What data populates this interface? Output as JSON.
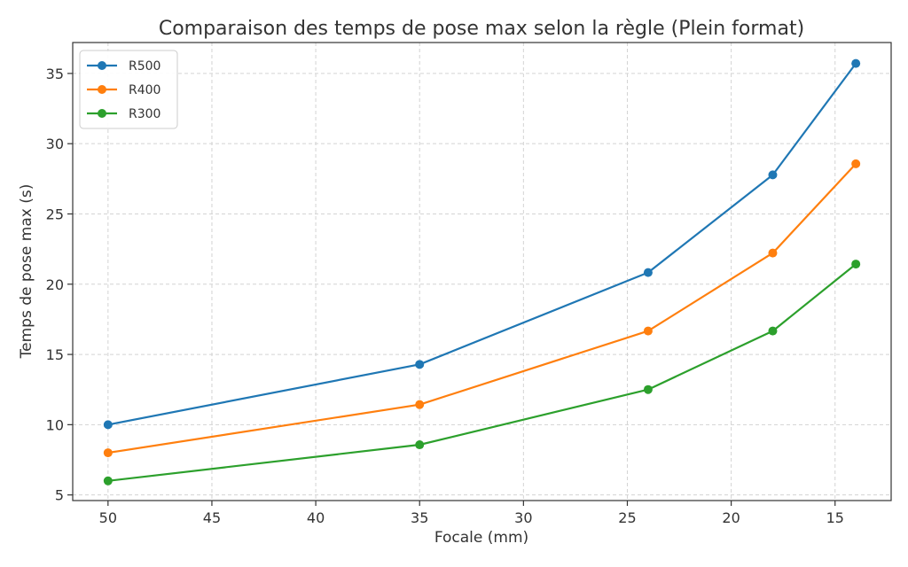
{
  "chart_data": {
    "type": "line",
    "title": "Comparaison des temps de pose max selon la règle (Plein format)",
    "xlabel": "Focale (mm)",
    "ylabel": "Temps de pose max (s)",
    "x": [
      50,
      35,
      24,
      18,
      14
    ],
    "xlim": [
      51.7,
      12.3
    ],
    "ylim": [
      4.6,
      37.2
    ],
    "x_ticks": [
      50,
      45,
      40,
      35,
      30,
      25,
      20,
      15
    ],
    "y_ticks": [
      5,
      10,
      15,
      20,
      25,
      30,
      35
    ],
    "grid": true,
    "legend_position": "top-left",
    "series": [
      {
        "name": "R500",
        "color": "#1f77b4",
        "values": [
          10.0,
          14.29,
          20.83,
          27.78,
          35.71
        ]
      },
      {
        "name": "R400",
        "color": "#ff7f0e",
        "values": [
          8.0,
          11.43,
          16.67,
          22.22,
          28.57
        ]
      },
      {
        "name": "R300",
        "color": "#2ca02c",
        "values": [
          6.0,
          8.57,
          12.5,
          16.67,
          21.43
        ]
      }
    ]
  }
}
